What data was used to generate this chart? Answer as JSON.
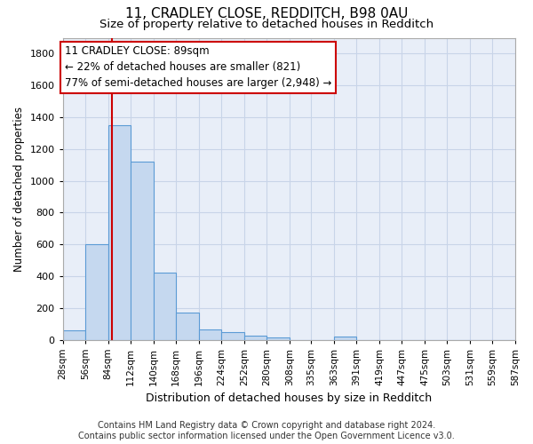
{
  "title": "11, CRADLEY CLOSE, REDDITCH, B98 0AU",
  "subtitle": "Size of property relative to detached houses in Redditch",
  "xlabel": "Distribution of detached houses by size in Redditch",
  "ylabel": "Number of detached properties",
  "bin_edges": [
    28,
    56,
    84,
    112,
    140,
    168,
    196,
    224,
    252,
    280,
    308,
    335,
    363,
    391,
    419,
    447,
    475,
    503,
    531,
    559,
    587
  ],
  "bar_heights": [
    60,
    600,
    1350,
    1120,
    420,
    170,
    65,
    45,
    25,
    15,
    0,
    0,
    20,
    0,
    0,
    0,
    0,
    0,
    0,
    0
  ],
  "bar_color": "#c5d8ef",
  "bar_edge_color": "#5b9bd5",
  "property_size": 89,
  "redline_color": "#cc0000",
  "annotation_line1": "11 CRADLEY CLOSE: 89sqm",
  "annotation_line2": "← 22% of detached houses are smaller (821)",
  "annotation_line3": "77% of semi-detached houses are larger (2,948) →",
  "ylim": [
    0,
    1900
  ],
  "yticks": [
    0,
    200,
    400,
    600,
    800,
    1000,
    1200,
    1400,
    1600,
    1800
  ],
  "tick_labels": [
    "28sqm",
    "56sqm",
    "84sqm",
    "112sqm",
    "140sqm",
    "168sqm",
    "196sqm",
    "224sqm",
    "252sqm",
    "280sqm",
    "308sqm",
    "335sqm",
    "363sqm",
    "391sqm",
    "419sqm",
    "447sqm",
    "475sqm",
    "503sqm",
    "531sqm",
    "559sqm",
    "587sqm"
  ],
  "grid_color": "#c8d4e8",
  "background_color": "#e8eef8",
  "footer_text": "Contains HM Land Registry data © Crown copyright and database right 2024.\nContains public sector information licensed under the Open Government Licence v3.0.",
  "title_fontsize": 11,
  "subtitle_fontsize": 9.5,
  "ylabel_fontsize": 8.5,
  "xlabel_fontsize": 9,
  "tick_fontsize": 7.5,
  "annotation_fontsize": 8.5,
  "footer_fontsize": 7
}
